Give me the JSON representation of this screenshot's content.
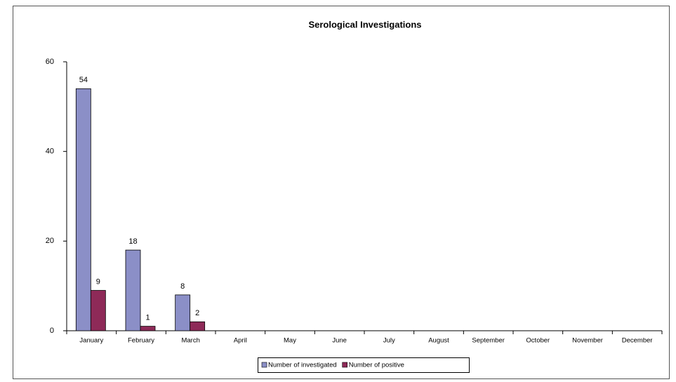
{
  "chart_data": {
    "type": "bar",
    "title": "Serological Investigations",
    "categories": [
      "January",
      "February",
      "March",
      "April",
      "May",
      "June",
      "July",
      "August",
      "September",
      "October",
      "November",
      "December"
    ],
    "series": [
      {
        "name": "Number of investigated",
        "color": "#8b8fc7",
        "values": [
          54,
          18,
          8,
          null,
          null,
          null,
          null,
          null,
          null,
          null,
          null,
          null
        ]
      },
      {
        "name": "Number of positive",
        "color": "#8e2a58",
        "values": [
          9,
          1,
          2,
          null,
          null,
          null,
          null,
          null,
          null,
          null,
          null,
          null
        ]
      }
    ],
    "ylim": [
      0,
      60
    ],
    "yticks": [
      0,
      20,
      40,
      60
    ],
    "grid": false,
    "legend": "bottom"
  }
}
